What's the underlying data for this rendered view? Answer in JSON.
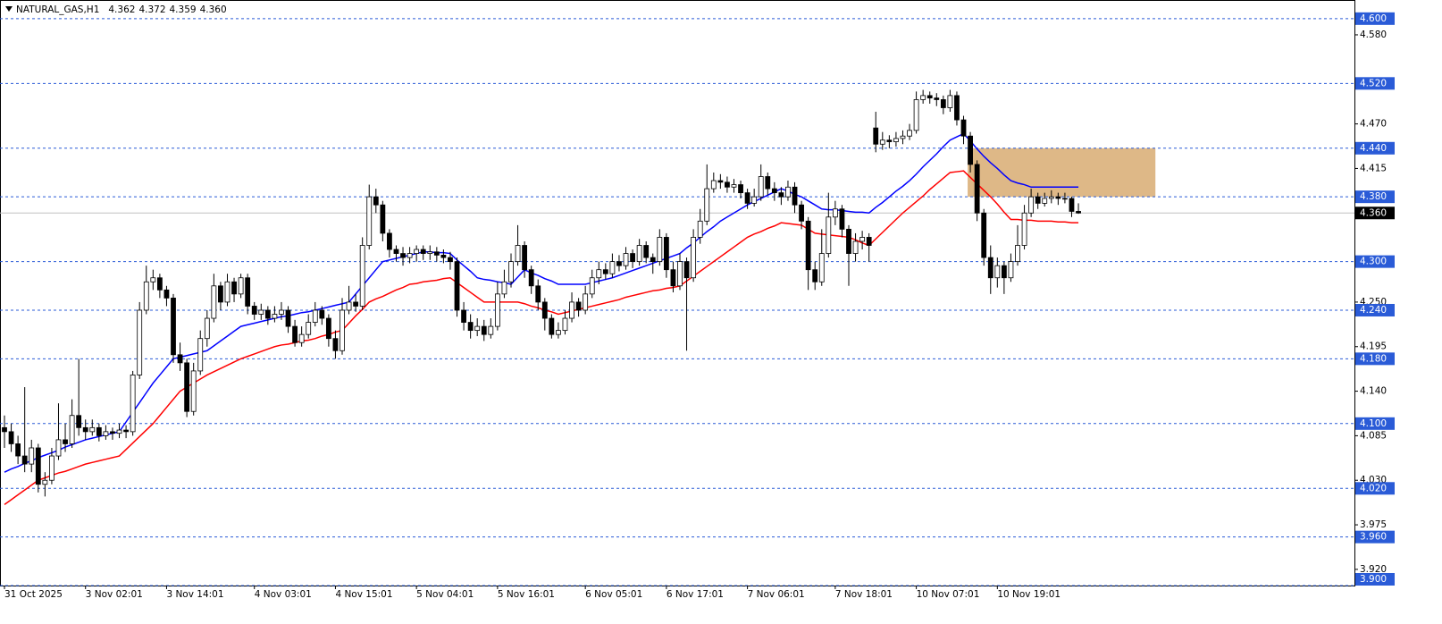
{
  "chart_data": {
    "type": "candlestick",
    "title": "NATURAL_GAS,H1",
    "title_values": [
      "4.362",
      "4.372",
      "4.359",
      "4.360"
    ],
    "categories": [
      "31 Oct 2025",
      null,
      null,
      null,
      null,
      null,
      null,
      null,
      null,
      null,
      null,
      null,
      "3 Nov 02:01",
      null,
      null,
      null,
      null,
      null,
      null,
      null,
      null,
      null,
      null,
      null,
      "3 Nov 14:01",
      null,
      null,
      null,
      null,
      null,
      null,
      null,
      null,
      null,
      null,
      null,
      null,
      "4 Nov 03:01",
      null,
      null,
      null,
      null,
      null,
      null,
      null,
      null,
      null,
      null,
      null,
      "4 Nov 15:01",
      null,
      null,
      null,
      null,
      null,
      null,
      null,
      null,
      null,
      null,
      null,
      "5 Nov 04:01",
      null,
      null,
      null,
      null,
      null,
      null,
      null,
      null,
      null,
      null,
      null,
      "5 Nov 16:01",
      null,
      null,
      null,
      null,
      null,
      null,
      null,
      null,
      null,
      null,
      null,
      null,
      "6 Nov 05:01",
      null,
      null,
      null,
      null,
      null,
      null,
      null,
      null,
      null,
      null,
      null,
      "6 Nov 17:01",
      null,
      null,
      null,
      null,
      null,
      null,
      null,
      null,
      null,
      null,
      null,
      "7 Nov 06:01",
      null,
      null,
      null,
      null,
      null,
      null,
      null,
      null,
      null,
      null,
      null,
      null,
      "7 Nov 18:01",
      null,
      null,
      null,
      null,
      null,
      null,
      null,
      null,
      null,
      null,
      null,
      "10 Nov 07:01",
      null,
      null,
      null,
      null,
      null,
      null,
      null,
      null,
      null,
      null,
      null,
      "10 Nov 19:01",
      null,
      null,
      null,
      null,
      null,
      null,
      null,
      null,
      null,
      null,
      null,
      null
    ],
    "open": [
      4.095,
      4.09,
      4.075,
      4.06,
      4.05,
      4.07,
      4.025,
      4.03,
      4.06,
      4.08,
      4.075,
      4.11,
      4.095,
      4.09,
      4.095,
      4.085,
      4.09,
      4.088,
      4.092,
      4.09,
      4.16,
      4.24,
      4.275,
      4.28,
      4.265,
      4.255,
      4.185,
      4.175,
      4.115,
      4.165,
      4.205,
      4.23,
      4.27,
      4.25,
      4.275,
      4.26,
      4.28,
      4.245,
      4.235,
      4.24,
      4.23,
      4.235,
      4.24,
      4.22,
      4.2,
      4.21,
      4.225,
      4.24,
      4.23,
      4.205,
      4.19,
      4.24,
      4.25,
      4.245,
      4.32,
      4.38,
      4.37,
      4.335,
      4.315,
      4.31,
      4.305,
      4.31,
      4.315,
      4.31,
      4.312,
      4.308,
      4.305,
      4.3,
      4.24,
      4.225,
      4.215,
      4.22,
      4.21,
      4.22,
      4.26,
      4.275,
      4.3,
      4.32,
      4.29,
      4.27,
      4.25,
      4.23,
      4.21,
      4.215,
      4.23,
      4.25,
      4.24,
      4.26,
      4.28,
      4.29,
      4.285,
      4.3,
      4.295,
      4.31,
      4.3,
      4.32,
      4.305,
      4.3,
      4.33,
      4.29,
      4.27,
      4.3,
      4.28,
      4.33,
      4.35,
      4.39,
      4.4,
      4.398,
      4.392,
      4.395,
      4.385,
      4.372,
      4.38,
      4.405,
      4.39,
      4.385,
      4.38,
      4.392,
      4.37,
      4.35,
      4.29,
      4.275,
      4.31,
      4.355,
      4.365,
      4.34,
      4.31,
      4.325,
      4.33,
      4.465,
      4.445,
      4.45,
      4.448,
      4.452,
      4.455,
      4.462,
      4.5,
      4.505,
      4.502,
      4.5,
      4.49,
      4.505,
      4.475,
      4.455,
      4.42,
      4.36,
      4.305,
      4.28,
      4.295,
      4.28,
      4.3,
      4.32,
      4.36,
      4.38,
      4.372,
      4.378,
      4.38,
      4.378,
      4.378,
      4.362
    ],
    "high": [
      4.11,
      4.1,
      4.085,
      4.145,
      4.08,
      4.075,
      4.04,
      4.07,
      4.125,
      4.1,
      4.13,
      4.18,
      4.105,
      4.105,
      4.1,
      4.098,
      4.095,
      4.1,
      4.098,
      4.165,
      4.25,
      4.295,
      4.29,
      4.285,
      4.27,
      4.26,
      4.2,
      4.18,
      4.175,
      4.215,
      4.24,
      4.285,
      4.275,
      4.285,
      4.28,
      4.285,
      4.285,
      4.25,
      4.248,
      4.245,
      4.245,
      4.25,
      4.245,
      4.228,
      4.22,
      4.235,
      4.25,
      4.245,
      4.235,
      4.215,
      4.255,
      4.27,
      4.26,
      4.33,
      4.395,
      4.39,
      4.375,
      4.34,
      4.32,
      4.318,
      4.318,
      4.32,
      4.32,
      4.32,
      4.318,
      4.315,
      4.312,
      4.305,
      4.25,
      4.235,
      4.23,
      4.228,
      4.23,
      4.275,
      4.29,
      4.31,
      4.345,
      4.325,
      4.295,
      4.278,
      4.255,
      4.235,
      4.225,
      4.24,
      4.262,
      4.255,
      4.27,
      4.29,
      4.3,
      4.298,
      4.31,
      4.308,
      4.318,
      4.315,
      4.328,
      4.325,
      4.31,
      4.34,
      4.335,
      4.3,
      4.31,
      4.305,
      4.34,
      4.365,
      4.42,
      4.41,
      4.408,
      4.405,
      4.402,
      4.4,
      4.39,
      4.39,
      4.42,
      4.41,
      4.398,
      4.392,
      4.4,
      4.398,
      4.375,
      4.355,
      4.3,
      4.34,
      4.385,
      4.375,
      4.37,
      4.345,
      4.335,
      4.338,
      4.335,
      4.485,
      4.46,
      4.456,
      4.46,
      4.462,
      4.47,
      4.51,
      4.512,
      4.51,
      4.508,
      4.505,
      4.512,
      4.51,
      4.48,
      4.46,
      4.425,
      4.365,
      4.32,
      4.305,
      4.3,
      4.31,
      4.345,
      4.37,
      4.39,
      4.385,
      4.385,
      4.388,
      4.385,
      4.385,
      4.38,
      4.372
    ],
    "low": [
      4.07,
      4.065,
      4.05,
      4.04,
      4.04,
      4.015,
      4.01,
      4.025,
      4.055,
      4.065,
      4.07,
      4.085,
      4.08,
      4.085,
      4.078,
      4.08,
      4.08,
      4.082,
      4.082,
      4.085,
      4.155,
      4.235,
      4.265,
      4.255,
      4.245,
      4.175,
      4.165,
      4.108,
      4.11,
      4.16,
      4.195,
      4.225,
      4.24,
      4.245,
      4.25,
      4.255,
      4.235,
      4.228,
      4.228,
      4.222,
      4.225,
      4.228,
      4.212,
      4.195,
      4.195,
      4.205,
      4.22,
      4.222,
      4.195,
      4.18,
      4.185,
      4.235,
      4.238,
      4.24,
      4.315,
      4.36,
      4.325,
      4.305,
      4.3,
      4.295,
      4.298,
      4.3,
      4.302,
      4.302,
      4.3,
      4.298,
      4.29,
      4.232,
      4.215,
      4.205,
      4.208,
      4.202,
      4.205,
      4.215,
      4.255,
      4.268,
      4.295,
      4.28,
      4.26,
      4.24,
      4.215,
      4.205,
      4.205,
      4.21,
      4.225,
      4.232,
      4.235,
      4.255,
      4.272,
      4.278,
      4.28,
      4.288,
      4.29,
      4.292,
      4.295,
      4.298,
      4.285,
      4.295,
      4.28,
      4.262,
      4.265,
      4.19,
      4.275,
      4.322,
      4.345,
      4.385,
      4.39,
      4.385,
      4.385,
      4.378,
      4.365,
      4.368,
      4.375,
      4.382,
      4.375,
      4.37,
      4.375,
      4.36,
      4.34,
      4.265,
      4.265,
      4.27,
      4.305,
      4.345,
      4.33,
      4.27,
      4.3,
      4.315,
      4.3,
      4.435,
      4.438,
      4.44,
      4.442,
      4.445,
      4.45,
      4.458,
      4.495,
      4.495,
      4.492,
      4.482,
      4.485,
      4.468,
      4.445,
      4.41,
      4.35,
      4.295,
      4.26,
      4.268,
      4.26,
      4.275,
      4.295,
      4.315,
      4.355,
      4.365,
      4.368,
      4.372,
      4.37,
      4.372,
      4.355,
      4.359
    ],
    "close": [
      4.09,
      4.075,
      4.06,
      4.05,
      4.07,
      4.025,
      4.03,
      4.06,
      4.08,
      4.075,
      4.11,
      4.095,
      4.09,
      4.095,
      4.085,
      4.09,
      4.088,
      4.092,
      4.09,
      4.16,
      4.24,
      4.275,
      4.28,
      4.265,
      4.255,
      4.185,
      4.175,
      4.115,
      4.165,
      4.205,
      4.23,
      4.27,
      4.25,
      4.275,
      4.26,
      4.28,
      4.245,
      4.235,
      4.24,
      4.23,
      4.235,
      4.24,
      4.22,
      4.2,
      4.21,
      4.225,
      4.24,
      4.23,
      4.205,
      4.19,
      4.24,
      4.25,
      4.245,
      4.32,
      4.38,
      4.37,
      4.335,
      4.315,
      4.31,
      4.305,
      4.31,
      4.315,
      4.31,
      4.312,
      4.308,
      4.305,
      4.3,
      4.24,
      4.225,
      4.215,
      4.22,
      4.21,
      4.22,
      4.26,
      4.275,
      4.3,
      4.32,
      4.29,
      4.27,
      4.25,
      4.23,
      4.21,
      4.215,
      4.23,
      4.25,
      4.24,
      4.26,
      4.28,
      4.29,
      4.285,
      4.3,
      4.295,
      4.31,
      4.3,
      4.32,
      4.305,
      4.3,
      4.33,
      4.29,
      4.27,
      4.3,
      4.28,
      4.33,
      4.35,
      4.39,
      4.4,
      4.398,
      4.392,
      4.395,
      4.385,
      4.372,
      4.38,
      4.405,
      4.39,
      4.385,
      4.38,
      4.392,
      4.37,
      4.35,
      4.29,
      4.275,
      4.31,
      4.355,
      4.365,
      4.34,
      4.31,
      4.325,
      4.33,
      4.32,
      4.445,
      4.45,
      4.448,
      4.452,
      4.455,
      4.462,
      4.5,
      4.505,
      4.502,
      4.5,
      4.49,
      4.505,
      4.475,
      4.455,
      4.42,
      4.36,
      4.305,
      4.28,
      4.295,
      4.28,
      4.3,
      4.32,
      4.36,
      4.38,
      4.372,
      4.378,
      4.38,
      4.378,
      4.378,
      4.362,
      4.36
    ],
    "series": [
      {
        "color": "#0000ff",
        "values": [
          4.04,
          4.044,
          4.047,
          4.051,
          4.054,
          4.058,
          4.061,
          4.064,
          4.067,
          4.071,
          4.074,
          4.077,
          4.08,
          4.082,
          4.084,
          4.086,
          4.088,
          4.09,
          4.102,
          4.114,
          4.126,
          4.138,
          4.15,
          4.16,
          4.17,
          4.18,
          4.182,
          4.184,
          4.186,
          4.188,
          4.19,
          4.196,
          4.202,
          4.208,
          4.214,
          4.22,
          4.222,
          4.224,
          4.226,
          4.228,
          4.23,
          4.232,
          4.233,
          4.235,
          4.237,
          4.238,
          4.24,
          4.242,
          4.244,
          4.246,
          4.248,
          4.25,
          4.26,
          4.27,
          4.28,
          4.29,
          4.3,
          4.302,
          4.304,
          4.306,
          4.308,
          4.31,
          4.312,
          4.312,
          4.311,
          4.311,
          4.31,
          4.302,
          4.295,
          4.288,
          4.28,
          4.278,
          4.277,
          4.275,
          4.274,
          4.272,
          4.281,
          4.29,
          4.286,
          4.283,
          4.279,
          4.276,
          4.272,
          4.272,
          4.272,
          4.272,
          4.272,
          4.274,
          4.276,
          4.278,
          4.28,
          4.283,
          4.286,
          4.289,
          4.292,
          4.295,
          4.298,
          4.301,
          4.304,
          4.307,
          4.31,
          4.317,
          4.323,
          4.33,
          4.337,
          4.343,
          4.35,
          4.355,
          4.36,
          4.365,
          4.37,
          4.374,
          4.378,
          4.382,
          4.386,
          4.39,
          4.387,
          4.383,
          4.38,
          4.375,
          4.37,
          4.365,
          4.364,
          4.364,
          4.363,
          4.362,
          4.361,
          4.361,
          4.36,
          4.367,
          4.373,
          4.38,
          4.387,
          4.393,
          4.4,
          4.408,
          4.417,
          4.425,
          4.433,
          4.442,
          4.45,
          4.454,
          4.458,
          4.449,
          4.439,
          4.43,
          4.422,
          4.415,
          4.407,
          4.4,
          4.397,
          4.395,
          4.392,
          4.392,
          4.392,
          4.392,
          4.392,
          4.392,
          4.392,
          4.392
        ]
      },
      {
        "color": "#ff0000",
        "values": [
          4.0,
          4.006,
          4.012,
          4.018,
          4.024,
          4.03,
          4.033,
          4.036,
          4.039,
          4.041,
          4.044,
          4.047,
          4.05,
          4.052,
          4.054,
          4.056,
          4.058,
          4.06,
          4.068,
          4.076,
          4.084,
          4.092,
          4.1,
          4.11,
          4.12,
          4.13,
          4.14,
          4.145,
          4.15,
          4.155,
          4.16,
          4.164,
          4.168,
          4.172,
          4.176,
          4.18,
          4.183,
          4.186,
          4.189,
          4.192,
          4.195,
          4.197,
          4.198,
          4.2,
          4.202,
          4.203,
          4.205,
          4.208,
          4.21,
          4.213,
          4.215,
          4.224,
          4.233,
          4.241,
          4.25,
          4.254,
          4.257,
          4.261,
          4.265,
          4.268,
          4.272,
          4.273,
          4.275,
          4.276,
          4.277,
          4.279,
          4.28,
          4.274,
          4.268,
          4.262,
          4.256,
          4.25,
          4.25,
          4.25,
          4.25,
          4.25,
          4.25,
          4.248,
          4.245,
          4.243,
          4.24,
          4.238,
          4.235,
          4.237,
          4.239,
          4.241,
          4.243,
          4.245,
          4.247,
          4.249,
          4.251,
          4.253,
          4.256,
          4.258,
          4.26,
          4.262,
          4.264,
          4.265,
          4.267,
          4.268,
          4.27,
          4.276,
          4.282,
          4.288,
          4.294,
          4.3,
          4.306,
          4.312,
          4.318,
          4.324,
          4.33,
          4.334,
          4.337,
          4.341,
          4.344,
          4.348,
          4.347,
          4.346,
          4.345,
          4.34,
          4.335,
          4.334,
          4.333,
          4.332,
          4.331,
          4.33,
          4.327,
          4.323,
          4.32,
          4.328,
          4.336,
          4.344,
          4.352,
          4.36,
          4.367,
          4.374,
          4.381,
          4.389,
          4.396,
          4.403,
          4.41,
          4.411,
          4.412,
          4.404,
          4.396,
          4.388,
          4.38,
          4.371,
          4.361,
          4.352,
          4.352,
          4.351,
          4.351,
          4.35,
          4.35,
          4.35,
          4.349,
          4.349,
          4.348,
          4.348
        ]
      }
    ],
    "ylim": [
      3.9,
      4.623
    ],
    "yticks": [
      {
        "value": 4.58,
        "label": "4.580"
      },
      {
        "value": 4.47,
        "label": "4.470"
      },
      {
        "value": 4.415,
        "label": "4.415"
      },
      {
        "value": 4.25,
        "label": "4.250"
      },
      {
        "value": 4.195,
        "label": "4.195"
      },
      {
        "value": 4.14,
        "label": "4.140"
      },
      {
        "value": 4.085,
        "label": "4.085"
      },
      {
        "value": 4.03,
        "label": "4.030"
      },
      {
        "value": 3.975,
        "label": "3.975"
      },
      {
        "value": 3.92,
        "label": "3.920"
      }
    ],
    "levels": [
      {
        "value": 4.6,
        "label": "4.600"
      },
      {
        "value": 4.52,
        "label": "4.520"
      },
      {
        "value": 4.44,
        "label": "4.440"
      },
      {
        "value": 4.38,
        "label": "4.380"
      },
      {
        "value": 4.3,
        "label": "4.300"
      },
      {
        "value": 4.24,
        "label": "4.240"
      },
      {
        "value": 4.18,
        "label": "4.180"
      },
      {
        "value": 4.1,
        "label": "4.100"
      },
      {
        "value": 4.02,
        "label": "4.020"
      },
      {
        "value": 3.96,
        "label": "3.960"
      },
      {
        "value": 3.9,
        "label": "3.900"
      }
    ],
    "level_color": "#2a5bd7",
    "last": {
      "value": 4.36,
      "label": "4.360"
    },
    "zone": {
      "from": 142.6,
      "to": 170.4,
      "top": 4.44,
      "bottom": 4.38,
      "color": "#deb887"
    },
    "up_color": "#ffffff",
    "down_color": "#000000"
  }
}
